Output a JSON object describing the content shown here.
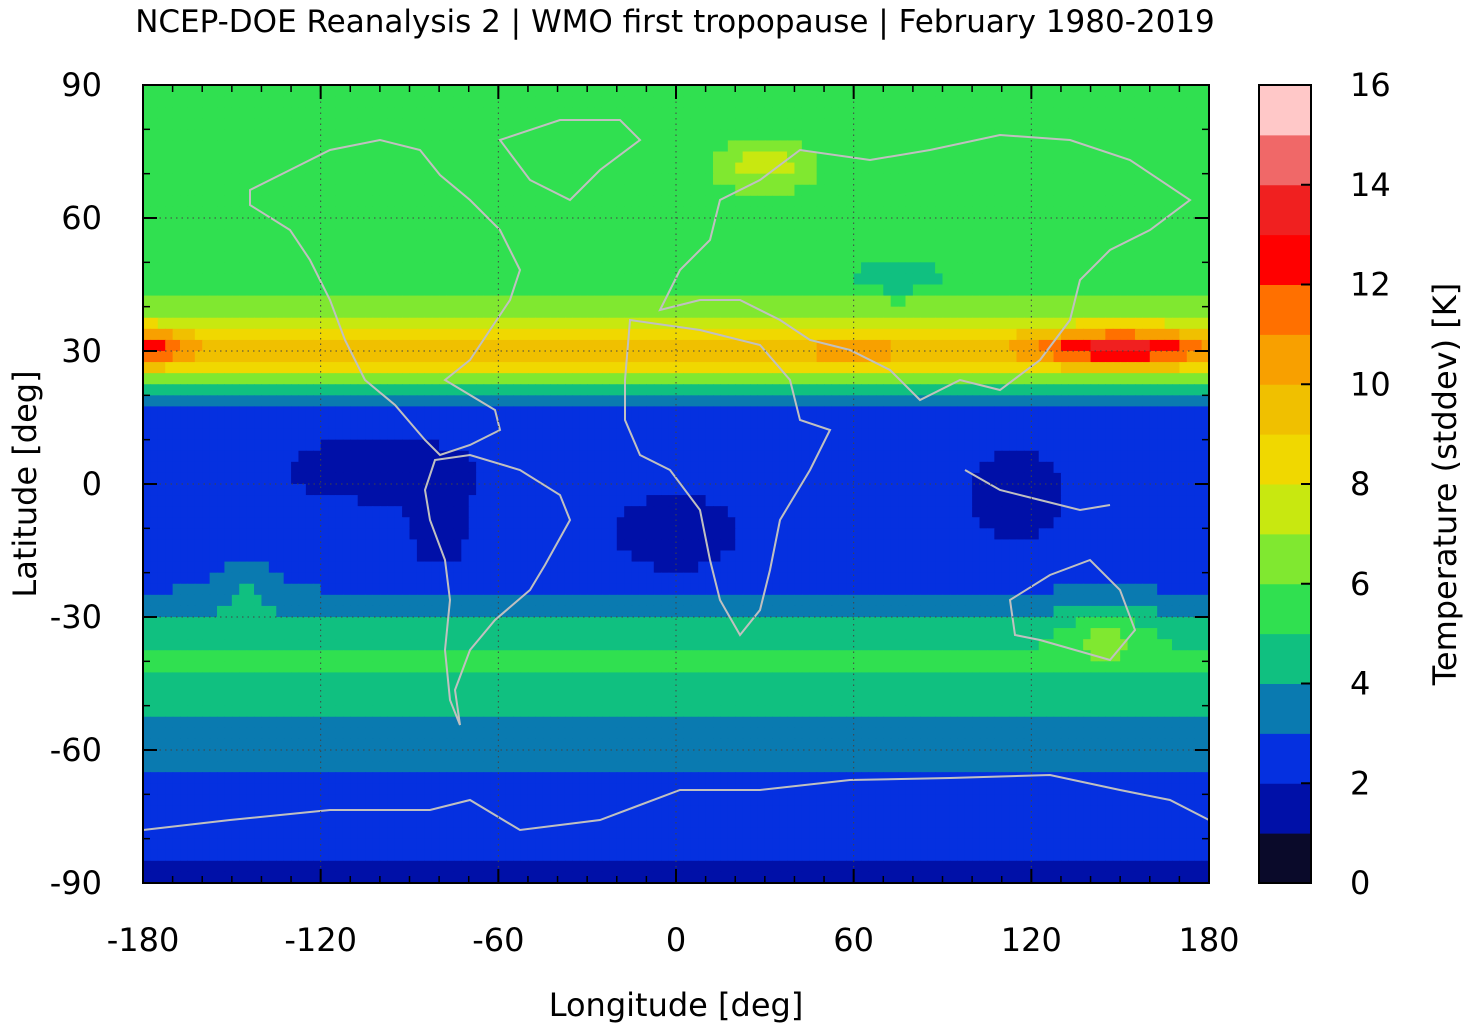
{
  "chart_data": {
    "type": "heatmap",
    "title": "NCEP-DOE Reanalysis 2 | WMO first tropopause | February 1980-2019",
    "xlabel": "Longitude [deg]",
    "ylabel": "Latitude [deg]",
    "colorbar_label": "Temperature (stddev) [K]",
    "xlim": [
      -180,
      180
    ],
    "ylim": [
      -90,
      90
    ],
    "x_ticks": [
      -180,
      -120,
      -60,
      0,
      60,
      120,
      180
    ],
    "y_ticks": [
      90,
      60,
      30,
      0,
      -30,
      -60,
      -90
    ],
    "colorbar_range": [
      0,
      16
    ],
    "colorbar_ticks": [
      0,
      2,
      4,
      6,
      8,
      10,
      12,
      14,
      16
    ],
    "grid": true,
    "coastlines": true,
    "colorbar_levels": [
      {
        "from": 0,
        "to": 1,
        "color": "#0a0a2a"
      },
      {
        "from": 1,
        "to": 2,
        "color": "#0010a8"
      },
      {
        "from": 2,
        "to": 3,
        "color": "#0530e0"
      },
      {
        "from": 3,
        "to": 4,
        "color": "#0a7ab0"
      },
      {
        "from": 4,
        "to": 5,
        "color": "#10c080"
      },
      {
        "from": 5,
        "to": 6,
        "color": "#30e050"
      },
      {
        "from": 6,
        "to": 7,
        "color": "#80e830"
      },
      {
        "from": 7,
        "to": 8,
        "color": "#c8e810"
      },
      {
        "from": 8,
        "to": 9,
        "color": "#f0d800"
      },
      {
        "from": 9,
        "to": 10,
        "color": "#f0c000"
      },
      {
        "from": 10,
        "to": 11,
        "color": "#f8a000"
      },
      {
        "from": 11,
        "to": 12,
        "color": "#ff7000"
      },
      {
        "from": 12,
        "to": 13,
        "color": "#ff0000"
      },
      {
        "from": 13,
        "to": 14,
        "color": "#f02020"
      },
      {
        "from": 14,
        "to": 15,
        "color": "#f06868"
      },
      {
        "from": 15,
        "to": 16,
        "color": "#ffc8c8"
      }
    ],
    "zonal_field_description": [
      {
        "lat": 85,
        "value": 5.6
      },
      {
        "lat": 75,
        "value": 5.5
      },
      {
        "lat": 65,
        "value": 5.6
      },
      {
        "lat": 55,
        "value": 5.8
      },
      {
        "lat": 45,
        "value": 5.5
      },
      {
        "lat": 38,
        "value": 6.8
      },
      {
        "lat": 33,
        "value": 8.5
      },
      {
        "lat": 30,
        "value": 9.5
      },
      {
        "lat": 26,
        "value": 8.2
      },
      {
        "lat": 22,
        "value": 5.5
      },
      {
        "lat": 18,
        "value": 2.5
      },
      {
        "lat": 10,
        "value": 2.2
      },
      {
        "lat": 0,
        "value": 2.2
      },
      {
        "lat": -10,
        "value": 2.3
      },
      {
        "lat": -20,
        "value": 2.4
      },
      {
        "lat": -27,
        "value": 3.5
      },
      {
        "lat": -32,
        "value": 4.5
      },
      {
        "lat": -40,
        "value": 5.2
      },
      {
        "lat": -45,
        "value": 4.6
      },
      {
        "lat": -52,
        "value": 4.2
      },
      {
        "lat": -57,
        "value": 3.5
      },
      {
        "lat": -63,
        "value": 3.3
      },
      {
        "lat": -68,
        "value": 2.6
      },
      {
        "lat": -75,
        "value": 2.3
      },
      {
        "lat": -82,
        "value": 2.2
      },
      {
        "lat": -88,
        "value": 1.8
      }
    ]
  }
}
